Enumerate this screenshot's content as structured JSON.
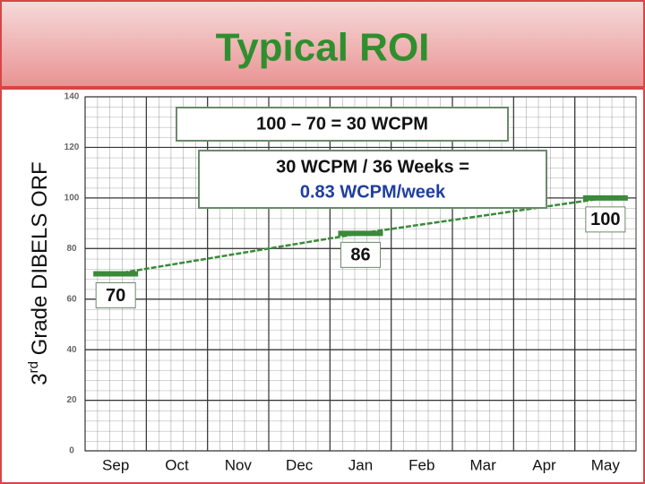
{
  "title": "Typical ROI",
  "chart_data": {
    "type": "line",
    "ylabel": [
      "3",
      "rd",
      " Grade DIBELS ORF"
    ],
    "categories": [
      "Sep",
      "Oct",
      "Nov",
      "Dec",
      "Jan",
      "Feb",
      "Mar",
      "Apr",
      "May"
    ],
    "ylim": [
      0,
      140
    ],
    "yticks": [
      0,
      20,
      40,
      60,
      80,
      100,
      120,
      140
    ],
    "grid": true,
    "series": [
      {
        "color": "#3a8a3a",
        "x": [
          "Sep",
          "Jan",
          "May"
        ],
        "values": [
          70,
          86,
          100
        ]
      }
    ],
    "annotations": [
      "100 – 70 = 30 WCPM",
      "30 WCPM / 36 Weeks =",
      "0.83 WCPM/week"
    ]
  }
}
